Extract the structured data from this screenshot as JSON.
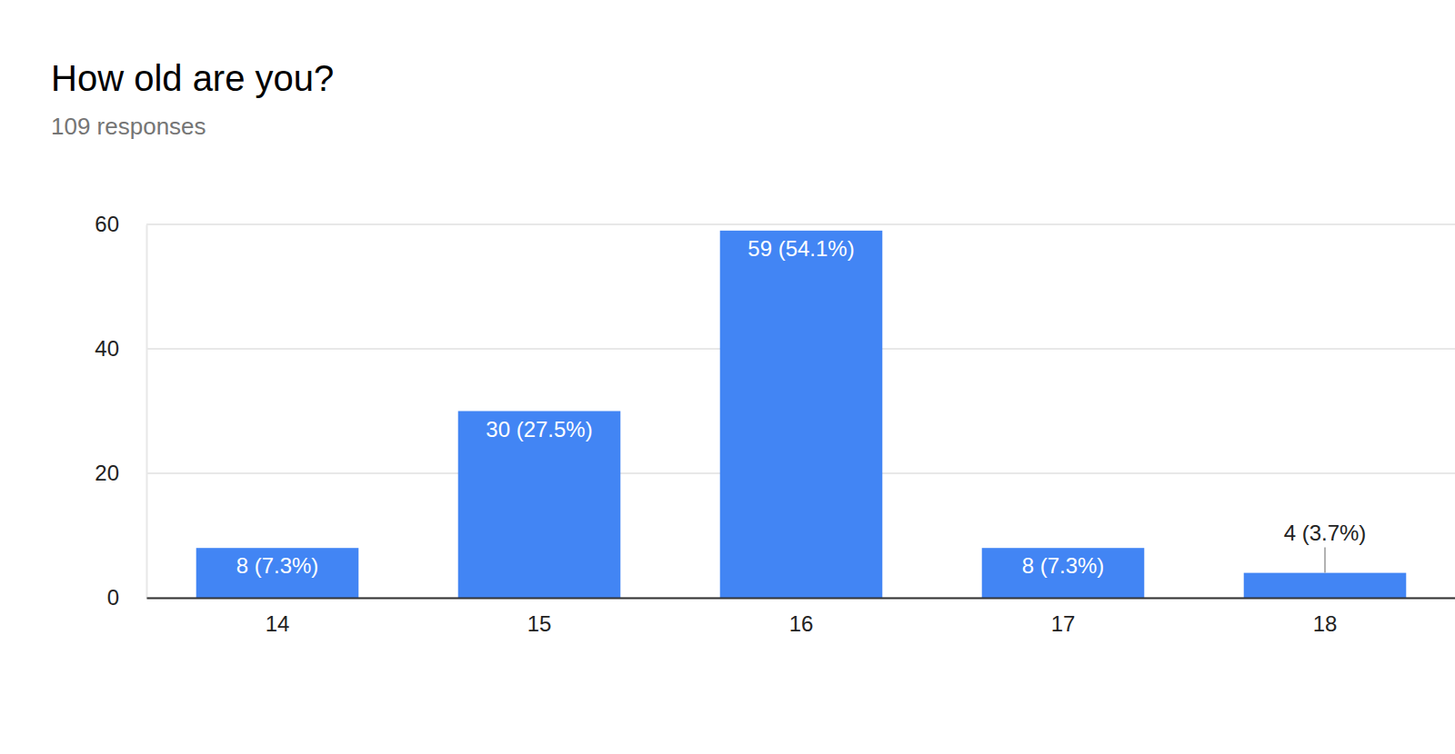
{
  "chart_data": {
    "type": "bar",
    "title": "How old are you?",
    "subtitle": "109 responses",
    "categories": [
      "14",
      "15",
      "16",
      "17",
      "18"
    ],
    "values": [
      8,
      30,
      59,
      8,
      4
    ],
    "value_labels": [
      "8 (7.3%)",
      "30 (27.5%)",
      "59 (54.1%)",
      "8 (7.3%)",
      "4 (3.7%)"
    ],
    "color": "#4285f4",
    "ylim": [
      0,
      60
    ],
    "yticks": [
      0,
      20,
      40,
      60
    ],
    "grid": true,
    "data_labels": true
  }
}
